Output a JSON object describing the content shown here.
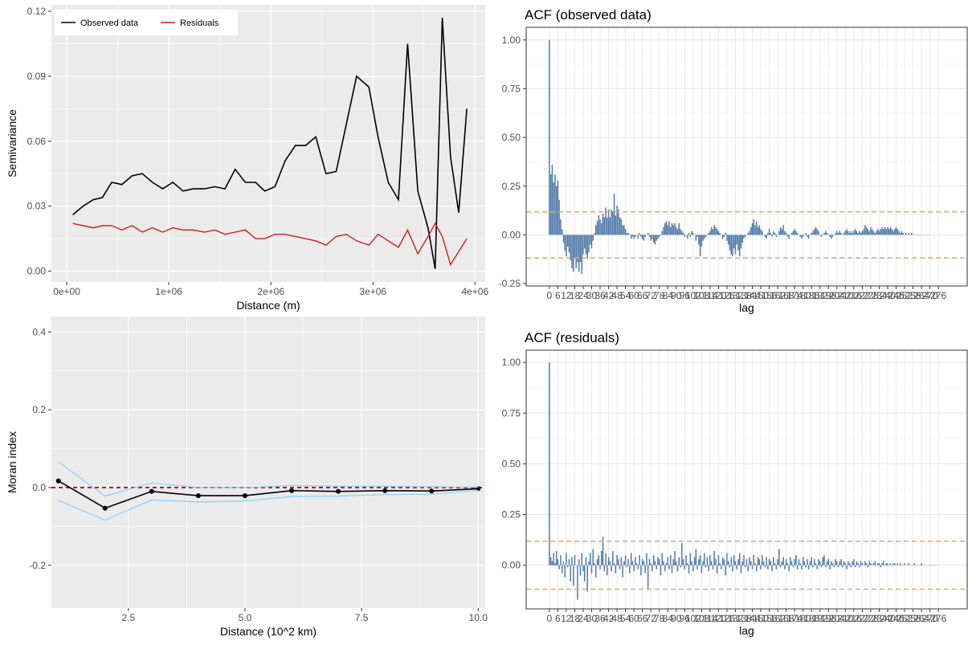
{
  "colors": {
    "panel_bg": "#ebebeb",
    "grid": "#ffffff",
    "observed": "#000000",
    "residuals": "#d7191c",
    "ci_band": "#87cefa",
    "zero_line": "#b2182b",
    "acf_bar": "#4f7aa8",
    "acf_bound": "#f4a261",
    "bw_grid": "#e5e5e5"
  },
  "chart_data": [
    {
      "id": "semivariogram",
      "type": "line",
      "title": "",
      "xlabel": "Distance (m)",
      "ylabel": "Semivariance",
      "xlim": [
        -150000,
        4100000
      ],
      "ylim": [
        -0.005,
        0.123
      ],
      "xticks": [
        0,
        1000000,
        2000000,
        3000000,
        4000000
      ],
      "xtick_labels": [
        "0e+00",
        "1e+06",
        "2e+06",
        "3e+06",
        "4e+06"
      ],
      "yticks": [
        0.0,
        0.03,
        0.06,
        0.09,
        0.12
      ],
      "ytick_labels": [
        "0.00",
        "0.03",
        "0.06",
        "0.09",
        "0.12"
      ],
      "grid": true,
      "legend": "top-left",
      "x": [
        60000,
        160000,
        260000,
        350000,
        440000,
        540000,
        640000,
        740000,
        840000,
        940000,
        1040000,
        1140000,
        1240000,
        1350000,
        1450000,
        1550000,
        1650000,
        1750000,
        1850000,
        1940000,
        2040000,
        2140000,
        2240000,
        2340000,
        2440000,
        2540000,
        2640000,
        2740000,
        2840000,
        2960000,
        3050000,
        3150000,
        3250000,
        3340000,
        3440000,
        3540000,
        3610000,
        3680000,
        3760000,
        3840000,
        3920000
      ],
      "series": [
        {
          "name": "Observed data",
          "values": [
            0.026,
            0.03,
            0.033,
            0.034,
            0.041,
            0.04,
            0.044,
            0.045,
            0.041,
            0.038,
            0.041,
            0.037,
            0.038,
            0.038,
            0.039,
            0.038,
            0.047,
            0.041,
            0.041,
            0.037,
            0.039,
            0.051,
            0.058,
            0.058,
            0.062,
            0.045,
            0.046,
            0.068,
            0.09,
            0.085,
            0.062,
            0.041,
            0.033,
            0.105,
            0.037,
            0.02,
            0.001,
            0.117,
            0.053,
            0.027,
            0.075
          ]
        },
        {
          "name": "Residuals",
          "values": [
            0.022,
            0.021,
            0.02,
            0.021,
            0.021,
            0.019,
            0.021,
            0.018,
            0.02,
            0.018,
            0.02,
            0.019,
            0.019,
            0.018,
            0.019,
            0.017,
            0.018,
            0.019,
            0.015,
            0.015,
            0.017,
            0.017,
            0.016,
            0.015,
            0.014,
            0.012,
            0.016,
            0.017,
            0.014,
            0.012,
            0.017,
            0.014,
            0.011,
            0.019,
            0.008,
            0.016,
            0.022,
            0.016,
            0.003,
            0.009,
            0.015
          ]
        }
      ]
    },
    {
      "id": "acf-observed",
      "type": "bar",
      "title": "ACF (observed data)",
      "xlabel": "lag",
      "ylabel": "",
      "max_lag": 276,
      "ylim": [
        -0.262,
        1.065
      ],
      "yticks": [
        -0.25,
        0.0,
        0.25,
        0.5,
        0.75,
        1.0
      ],
      "ytick_labels": [
        "-0.25",
        "0.00",
        "0.25",
        "0.50",
        "0.75",
        "1.00"
      ],
      "xtick_labels": [
        "0",
        "6",
        "12",
        "18",
        "24",
        "30",
        "36",
        "42",
        "48",
        "54",
        "60",
        "66",
        "72",
        "78",
        "84",
        "90",
        "96",
        "102",
        "108",
        "114",
        "120",
        "126",
        "132",
        "138",
        "144",
        "150",
        "156",
        "162",
        "168",
        "174",
        "180",
        "186",
        "192",
        "198",
        "204",
        "210",
        "216",
        "222",
        "228",
        "234",
        "240",
        "246",
        "252",
        "258",
        "264",
        "270",
        "276"
      ],
      "confidence_bound": 0.118,
      "grid": true,
      "values": [
        1.0,
        0.31,
        0.36,
        0.27,
        0.31,
        0.25,
        0.28,
        0.18,
        0.08,
        0.03,
        -0.04,
        -0.08,
        -0.11,
        -0.06,
        -0.09,
        -0.13,
        -0.17,
        -0.19,
        -0.12,
        -0.17,
        -0.14,
        -0.19,
        -0.14,
        -0.2,
        -0.1,
        -0.07,
        -0.1,
        -0.12,
        -0.09,
        -0.05,
        -0.07,
        -0.03,
        0.01,
        0.05,
        0.07,
        0.1,
        0.08,
        0.06,
        0.11,
        0.09,
        0.14,
        0.09,
        0.13,
        0.09,
        0.13,
        0.12,
        0.21,
        0.1,
        0.15,
        0.13,
        0.09,
        0.08,
        0.05,
        0.05,
        0.03,
        0.01,
        0.01,
        0.0,
        -0.02,
        -0.01,
        -0.02,
        -0.01,
        0.0,
        -0.02,
        0.01,
        -0.01,
        -0.02,
        -0.03,
        -0.01,
        0.0,
        0.01,
        -0.01,
        -0.03,
        -0.02,
        -0.04,
        -0.05,
        -0.03,
        -0.02,
        -0.01,
        0.0,
        0.02,
        0.04,
        0.06,
        0.07,
        0.05,
        0.07,
        0.04,
        0.06,
        0.05,
        0.06,
        0.04,
        0.03,
        0.06,
        0.03,
        0.02,
        0.01,
        -0.01,
        0.0,
        -0.02,
        0.01,
        -0.01,
        0.02,
        0.01,
        0.0,
        -0.03,
        -0.01,
        -0.05,
        -0.11,
        -0.06,
        -0.03,
        -0.02,
        -0.01,
        0.0,
        0.01,
        0.02,
        0.04,
        0.03,
        0.05,
        0.04,
        0.03,
        0.02,
        0.01,
        0.0,
        -0.02,
        -0.01,
        0.01,
        -0.03,
        -0.05,
        -0.08,
        -0.1,
        -0.11,
        -0.07,
        -0.1,
        -0.05,
        -0.08,
        -0.11,
        -0.07,
        -0.04,
        -0.02,
        -0.01,
        0.0,
        0.01,
        0.02,
        0.04,
        0.06,
        0.08,
        0.05,
        0.07,
        0.04,
        0.05,
        0.03,
        0.02,
        0.0,
        -0.01,
        -0.02,
        0.01,
        0.03,
        0.01,
        -0.01,
        0.02,
        0.01,
        -0.01,
        0.0,
        0.02,
        0.04,
        0.03,
        0.05,
        0.02,
        0.01,
        -0.01,
        -0.02,
        0.0,
        0.01,
        0.02,
        0.03,
        0.02,
        0.01,
        0.0,
        -0.01,
        -0.02,
        -0.01,
        0.0,
        0.01,
        -0.01,
        -0.02,
        0.0,
        0.01,
        0.02,
        0.03,
        0.04,
        0.03,
        0.02,
        0.0,
        -0.01,
        0.0,
        0.01,
        0.02,
        0.01,
        0.0,
        -0.01,
        -0.02,
        -0.01,
        0.0,
        0.01,
        0.02,
        0.01,
        0.02,
        0.01,
        0.0,
        0.01,
        0.02,
        0.03,
        0.02,
        0.01,
        0.02,
        0.01,
        0.02,
        0.03,
        0.02,
        0.01,
        0.02,
        0.01,
        0.02,
        0.03,
        0.05,
        0.04,
        0.03,
        0.02,
        0.04,
        0.03,
        0.02,
        0.01,
        0.02,
        0.03,
        0.02,
        0.03,
        0.04,
        0.03,
        0.04,
        0.03,
        0.04,
        0.03,
        0.04,
        0.03,
        0.02,
        0.03,
        0.04,
        0.03,
        0.02,
        0.01,
        0.02,
        0.01,
        0.0,
        0.01,
        0.0,
        0.01,
        0.0,
        0.01,
        0.0,
        0.0,
        0.0,
        0.0,
        0.0,
        0.0,
        0.0,
        0.0,
        0.0,
        0.0,
        0.0,
        0.0
      ]
    },
    {
      "id": "moran",
      "type": "line",
      "title": "",
      "xlabel": "Distance (10^2 km)",
      "ylabel": "Moran index",
      "xlim": [
        0.85,
        10.15
      ],
      "ylim": [
        -0.31,
        0.44
      ],
      "xticks": [
        2.5,
        5.0,
        7.5,
        10.0
      ],
      "xtick_labels": [
        "2.5",
        "5.0",
        "7.5",
        "10.0"
      ],
      "yticks": [
        -0.2,
        0.0,
        0.2,
        0.4
      ],
      "ytick_labels": [
        "-0.2",
        "0.0",
        "0.2",
        "0.4"
      ],
      "grid": true,
      "reference_line": 0,
      "x": [
        1,
        2,
        3,
        4,
        5,
        6,
        7,
        8,
        9,
        10
      ],
      "series": [
        {
          "values": [
            0.017,
            -0.053,
            -0.01,
            -0.021,
            -0.021,
            -0.008,
            -0.01,
            -0.008,
            -0.009,
            -0.003
          ]
        },
        {
          "values": [
            0.066,
            -0.022,
            0.012,
            0.0,
            0.0,
            0.005,
            0.003,
            0.003,
            0.002,
            0.001
          ]
        },
        {
          "values": [
            -0.033,
            -0.084,
            -0.032,
            -0.037,
            -0.035,
            -0.023,
            -0.022,
            -0.018,
            -0.017,
            -0.007
          ]
        }
      ]
    },
    {
      "id": "acf-residuals",
      "type": "bar",
      "title": "ACF (residuals)",
      "xlabel": "lag",
      "ylabel": "",
      "max_lag": 276,
      "ylim": [
        -0.215,
        1.06
      ],
      "yticks": [
        0.0,
        0.25,
        0.5,
        0.75,
        1.0
      ],
      "ytick_labels": [
        "0.00",
        "0.25",
        "0.50",
        "0.75",
        "1.00"
      ],
      "xtick_labels": [
        "0",
        "6",
        "12",
        "18",
        "24",
        "30",
        "36",
        "42",
        "48",
        "54",
        "60",
        "66",
        "72",
        "78",
        "84",
        "90",
        "96",
        "102",
        "108",
        "114",
        "120",
        "126",
        "132",
        "138",
        "144",
        "150",
        "156",
        "162",
        "168",
        "174",
        "180",
        "186",
        "192",
        "198",
        "204",
        "210",
        "216",
        "222",
        "228",
        "234",
        "240",
        "246",
        "252",
        "258",
        "264",
        "270",
        "276"
      ],
      "confidence_bound": 0.118,
      "grid": true,
      "values": [
        1.0,
        0.04,
        0.02,
        0.06,
        0.01,
        0.07,
        0.03,
        -0.02,
        0.05,
        -0.04,
        0.02,
        -0.06,
        0.06,
        -0.01,
        0.03,
        -0.08,
        0.04,
        -0.1,
        0.05,
        0.0,
        -0.17,
        0.03,
        -0.05,
        0.06,
        -0.03,
        -0.08,
        0.04,
        -0.13,
        0.02,
        0.06,
        -0.04,
        0.08,
        0.01,
        -0.06,
        0.03,
        0.05,
        -0.02,
        0.07,
        0.14,
        -0.03,
        0.06,
        -0.05,
        0.04,
        0.02,
        -0.03,
        0.07,
        0.01,
        -0.04,
        0.05,
        0.03,
        -0.02,
        0.04,
        -0.06,
        0.02,
        0.05,
        -0.01,
        0.03,
        -0.04,
        0.06,
        0.02,
        -0.03,
        0.04,
        0.01,
        -0.02,
        0.05,
        -0.05,
        0.03,
        0.02,
        -0.04,
        0.06,
        -0.12,
        0.03,
        0.01,
        -0.03,
        0.05,
        0.02,
        -0.02,
        0.04,
        0.03,
        -0.05,
        0.06,
        0.02,
        -0.03,
        0.01,
        0.04,
        -0.02,
        0.05,
        -0.04,
        0.03,
        0.07,
        0.02,
        -0.03,
        0.04,
        -0.01,
        0.11,
        0.03,
        -0.02,
        0.05,
        0.01,
        -0.04,
        0.06,
        0.02,
        -0.03,
        0.04,
        0.08,
        -0.02,
        0.03,
        0.05,
        -0.04,
        0.02,
        0.06,
        -0.01,
        0.04,
        -0.03,
        0.05,
        0.02,
        -0.02,
        0.07,
        0.03,
        -0.04,
        0.05,
        0.01,
        -0.02,
        0.04,
        0.03,
        -0.05,
        0.06,
        0.02,
        -0.01,
        0.04,
        -0.03,
        0.05,
        0.02,
        -0.02,
        0.03,
        0.06,
        -0.04,
        0.02,
        0.05,
        -0.01,
        0.03,
        -0.03,
        0.04,
        0.02,
        -0.02,
        0.05,
        0.01,
        -0.03,
        0.04,
        0.03,
        -0.02,
        0.05,
        0.02,
        -0.01,
        0.04,
        -0.02,
        0.03,
        0.02,
        -0.03,
        0.04,
        0.01,
        -0.02,
        0.03,
        0.08,
        -0.01,
        0.02,
        0.04,
        -0.02,
        0.03,
        0.01,
        -0.03,
        0.04,
        0.02,
        -0.01,
        0.03,
        0.05,
        -0.02,
        0.03,
        0.01,
        -0.02,
        0.04,
        0.02,
        -0.01,
        0.03,
        -0.02,
        0.02,
        0.04,
        -0.01,
        0.03,
        0.01,
        -0.02,
        0.03,
        0.02,
        -0.01,
        0.04,
        0.05,
        -0.01,
        0.02,
        0.03,
        -0.02,
        0.02,
        0.01,
        -0.01,
        0.03,
        0.02,
        -0.01,
        0.02,
        0.03,
        -0.01,
        0.02,
        0.01,
        -0.02,
        0.02,
        0.01,
        -0.01,
        0.02,
        0.03,
        -0.01,
        0.02,
        0.01,
        -0.01,
        0.02,
        0.01,
        0.0,
        0.02,
        0.01,
        -0.01,
        0.02,
        0.01,
        0.0,
        0.01,
        0.02,
        0.0,
        0.01,
        0.01,
        -0.01,
        0.01,
        0.02,
        0.0,
        0.01,
        0.01,
        0.0,
        0.01,
        0.0,
        0.01,
        0.01,
        0.0,
        0.01,
        0.0,
        0.01,
        0.0,
        0.0,
        0.01,
        0.0,
        0.0,
        0.01,
        0.0,
        0.0,
        0.0,
        0.01,
        0.0,
        0.0,
        0.0,
        0.0,
        0.01,
        0.0,
        0.0,
        0.0,
        0.0,
        0.0,
        0.0,
        0.0,
        0.0,
        0.0,
        0.0,
        0.0
      ]
    }
  ]
}
